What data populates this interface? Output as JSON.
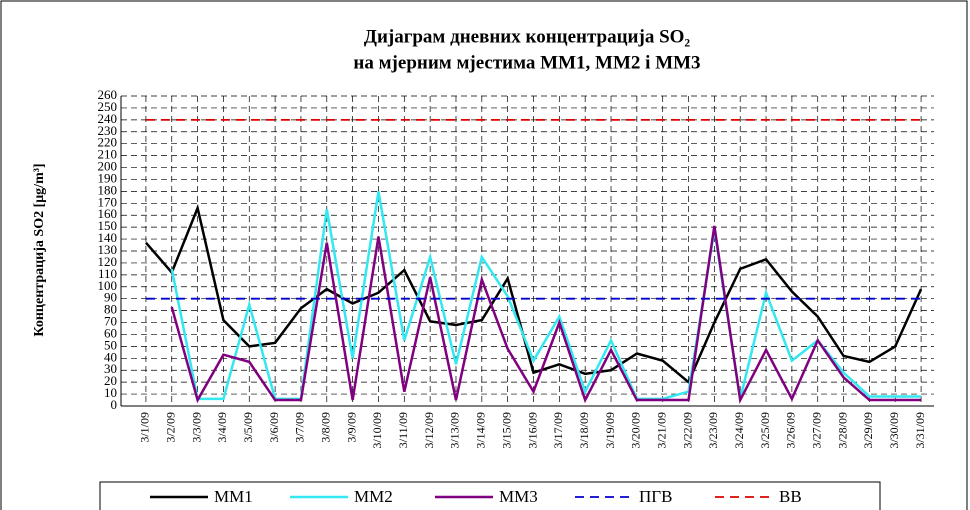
{
  "chart_data": {
    "type": "line",
    "title": [
      "Дијаграм дневних концентрација SO₂",
      "на мјерним мјестима ММ1, ММ2 i ММ3"
    ],
    "y_label": "Концентрација SO2 [μg/m³]",
    "categories": [
      "3/1/09",
      "3/2/09",
      "3/3/09",
      "3/4/09",
      "3/5/09",
      "3/6/09",
      "3/7/09",
      "3/8/09",
      "3/9/09",
      "3/10/09",
      "3/11/09",
      "3/12/09",
      "3/13/09",
      "3/14/09",
      "3/15/09",
      "3/16/09",
      "3/17/09",
      "3/18/09",
      "3/19/09",
      "3/20/09",
      "3/21/09",
      "3/22/09",
      "3/23/09",
      "3/24/09",
      "3/25/09",
      "3/26/09",
      "3/27/09",
      "3/28/09",
      "3/29/09",
      "3/30/09",
      "3/31/09"
    ],
    "series": [
      {
        "name": "ММ1",
        "color": "#000000",
        "dash": false,
        "values": [
          137,
          112,
          166,
          72,
          50,
          53,
          82,
          98,
          86,
          95,
          114,
          71,
          68,
          72,
          107,
          28,
          35,
          27,
          30,
          44,
          38,
          20,
          70,
          115,
          123,
          96,
          75,
          42,
          37,
          50,
          98
        ]
      },
      {
        "name": "ММ2",
        "color": "#33e8f0",
        "dash": false,
        "values": [
          null,
          115,
          6,
          6,
          85,
          6,
          6,
          165,
          40,
          180,
          55,
          125,
          35,
          125,
          92,
          38,
          75,
          12,
          55,
          6,
          6,
          12,
          148,
          6,
          95,
          38,
          55,
          28,
          8,
          8,
          8
        ]
      },
      {
        "name": "ММ3",
        "color": "#800080",
        "dash": false,
        "values": [
          null,
          83,
          5,
          43,
          37,
          5,
          5,
          137,
          5,
          142,
          12,
          108,
          5,
          106,
          48,
          12,
          70,
          5,
          47,
          5,
          5,
          5,
          151,
          5,
          47,
          6,
          55,
          24,
          5,
          5,
          5
        ]
      },
      {
        "name": "ПГВ",
        "color": "#0000cc",
        "dash": true,
        "values": [
          90,
          90,
          90,
          90,
          90,
          90,
          90,
          90,
          90,
          90,
          90,
          90,
          90,
          90,
          90,
          90,
          90,
          90,
          90,
          90,
          90,
          90,
          90,
          90,
          90,
          90,
          90,
          90,
          90,
          90,
          90
        ]
      },
      {
        "name": "ВВ",
        "color": "#dd0000",
        "dash": true,
        "values": [
          240,
          240,
          240,
          240,
          240,
          240,
          240,
          240,
          240,
          240,
          240,
          240,
          240,
          240,
          240,
          240,
          240,
          240,
          240,
          240,
          240,
          240,
          240,
          240,
          240,
          240,
          240,
          240,
          240,
          240,
          240
        ]
      }
    ],
    "ylim": [
      0,
      260
    ],
    "yticks": [
      0,
      10,
      20,
      30,
      40,
      50,
      60,
      70,
      80,
      90,
      100,
      110,
      120,
      130,
      140,
      150,
      160,
      170,
      180,
      190,
      200,
      210,
      220,
      230,
      240,
      250,
      260
    ],
    "grid": true,
    "legend": "bottom"
  }
}
